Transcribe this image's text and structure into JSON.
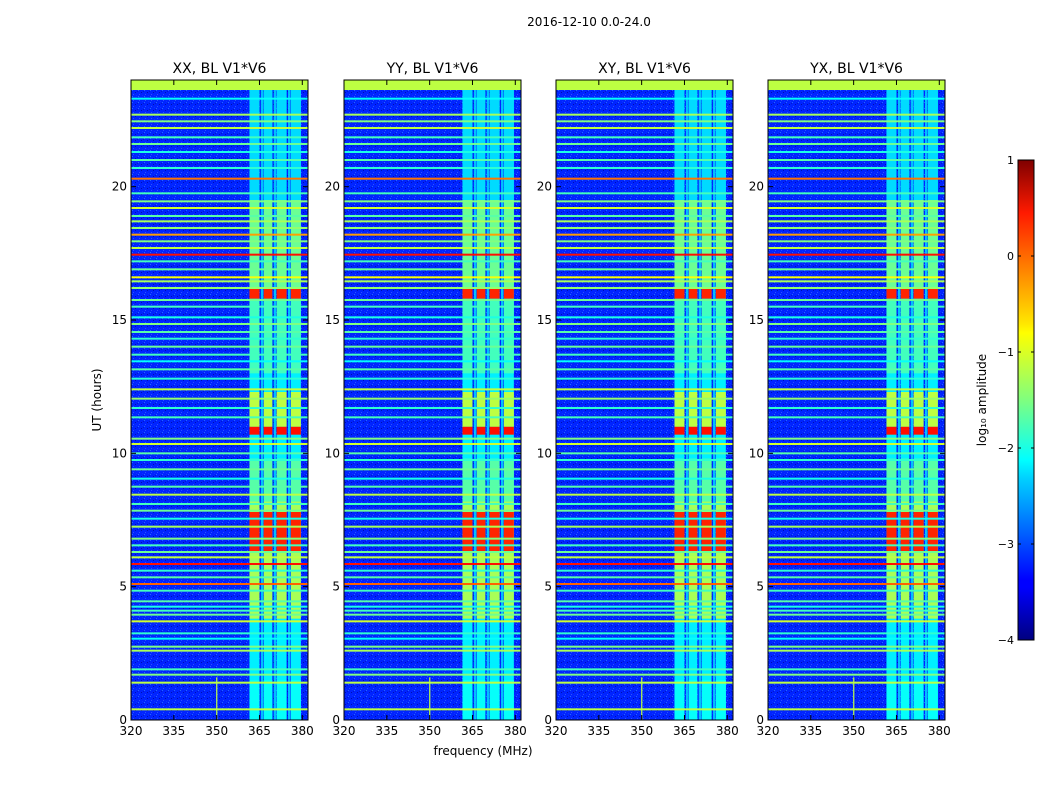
{
  "chart_data": {
    "type": "heatmap",
    "suptitle": "2016-12-10 0.0-24.0",
    "xlabel": "frequency (MHz)",
    "ylabel": "UT (hours)",
    "xlim": [
      320,
      382
    ],
    "ylim": [
      0,
      24
    ],
    "xticks": [
      320,
      335,
      350,
      365,
      380
    ],
    "yticks": [
      0,
      5,
      10,
      15,
      20
    ],
    "colorbar": {
      "label": "log₁₀ amplitude",
      "range": [
        -4,
        1
      ],
      "ticks": [
        1,
        0,
        -1,
        -2,
        -3,
        -4
      ],
      "tick_labels": [
        "1",
        "0",
        "−1",
        "−2",
        "−3",
        "−4"
      ],
      "colormap": "jet"
    },
    "background_log10_amplitude": -3.2,
    "panels": [
      {
        "title": "XX, BL V1*V6",
        "signal_band_start_hour": 0.0
      },
      {
        "title": "YY, BL V1*V6",
        "signal_band_start_hour": 0.0
      },
      {
        "title": "XY, BL V1*V6",
        "signal_band_start_hour": 0.0
      },
      {
        "title": "YX, BL V1*V6",
        "signal_band_start_hour": 0.0
      }
    ],
    "signal_channels_mhz": [
      {
        "from": 361.5,
        "to": 365.0
      },
      {
        "from": 366.5,
        "to": 369.5
      },
      {
        "from": 371.0,
        "to": 374.5
      },
      {
        "from": 376.0,
        "to": 379.5
      }
    ],
    "faint_channels_mhz": [
      {
        "from": 365.5,
        "to": 366.3
      },
      {
        "from": 370.0,
        "to": 370.8
      },
      {
        "from": 375.0,
        "to": 375.8
      }
    ],
    "vertical_rfi_lines": [
      {
        "freq_mhz": 350,
        "from_hour": 0.0,
        "to_hour": 1.6
      }
    ],
    "signal_blocks": [
      {
        "from_hour": 0.0,
        "to_hour": 1.5,
        "log10_amplitude": -2.1
      },
      {
        "from_hour": 3.8,
        "to_hour": 8.2,
        "log10_amplitude": -1.3
      },
      {
        "from_hour": 6.3,
        "to_hour": 7.8,
        "log10_amplitude": 0.2
      },
      {
        "from_hour": 8.2,
        "to_hour": 9.8,
        "log10_amplitude": -1.7
      },
      {
        "from_hour": 10.7,
        "to_hour": 11.0,
        "log10_amplitude": 0.3
      },
      {
        "from_hour": 11.0,
        "to_hour": 12.3,
        "log10_amplitude": -1.2
      },
      {
        "from_hour": 13.0,
        "to_hour": 15.8,
        "log10_amplitude": -1.8
      },
      {
        "from_hour": 15.8,
        "to_hour": 16.2,
        "log10_amplitude": 0.2
      },
      {
        "from_hour": 16.2,
        "to_hour": 19.5,
        "log10_amplitude": -1.6
      },
      {
        "from_hour": 19.5,
        "to_hour": 24.0,
        "log10_amplitude": -2.3
      }
    ],
    "time_rfi_lines": [
      {
        "hour": 0.4,
        "log10_amplitude": -1.2
      },
      {
        "hour": 1.4,
        "log10_amplitude": -1.2
      },
      {
        "hour": 1.7,
        "log10_amplitude": -1.5
      },
      {
        "hour": 1.9,
        "log10_amplitude": -1.8
      },
      {
        "hour": 2.6,
        "log10_amplitude": -1.3
      },
      {
        "hour": 2.75,
        "log10_amplitude": -1.5
      },
      {
        "hour": 3.05,
        "log10_amplitude": -2.1
      },
      {
        "hour": 3.25,
        "log10_amplitude": -1.9
      },
      {
        "hour": 3.7,
        "log10_amplitude": -1.1
      },
      {
        "hour": 3.95,
        "log10_amplitude": -1.6
      },
      {
        "hour": 4.1,
        "log10_amplitude": -1.8
      },
      {
        "hour": 4.25,
        "log10_amplitude": -2.0
      },
      {
        "hour": 4.45,
        "log10_amplitude": -1.7
      },
      {
        "hour": 4.85,
        "log10_amplitude": -1.8
      },
      {
        "hour": 5.1,
        "log10_amplitude": -0.1
      },
      {
        "hour": 5.35,
        "log10_amplitude": -1.7
      },
      {
        "hour": 5.6,
        "log10_amplitude": -1.9
      },
      {
        "hour": 5.85,
        "log10_amplitude": 0.3
      },
      {
        "hour": 6.1,
        "log10_amplitude": -1.2
      },
      {
        "hour": 6.3,
        "log10_amplitude": -1.6
      },
      {
        "hour": 6.55,
        "log10_amplitude": -1.8
      },
      {
        "hour": 6.8,
        "log10_amplitude": -1.5
      },
      {
        "hour": 7.25,
        "log10_amplitude": -1.3
      },
      {
        "hour": 7.55,
        "log10_amplitude": -2.0
      },
      {
        "hour": 7.85,
        "log10_amplitude": -1.6
      },
      {
        "hour": 8.1,
        "log10_amplitude": -1.8
      },
      {
        "hour": 8.45,
        "log10_amplitude": -1.2
      },
      {
        "hour": 8.75,
        "log10_amplitude": -1.7
      },
      {
        "hour": 9.05,
        "log10_amplitude": -2.0
      },
      {
        "hour": 9.4,
        "log10_amplitude": -1.6
      },
      {
        "hour": 9.75,
        "log10_amplitude": -1.9
      },
      {
        "hour": 10.0,
        "log10_amplitude": -1.7
      },
      {
        "hour": 10.35,
        "log10_amplitude": -1.1
      },
      {
        "hour": 10.55,
        "log10_amplitude": -1.5
      },
      {
        "hour": 11.35,
        "log10_amplitude": -1.8
      },
      {
        "hour": 11.7,
        "log10_amplitude": -1.9
      },
      {
        "hour": 12.05,
        "log10_amplitude": -1.4
      },
      {
        "hour": 12.4,
        "log10_amplitude": -1.2
      },
      {
        "hour": 12.8,
        "log10_amplitude": -1.9
      },
      {
        "hour": 13.15,
        "log10_amplitude": -1.7
      },
      {
        "hour": 13.45,
        "log10_amplitude": -2.1
      },
      {
        "hour": 13.7,
        "log10_amplitude": -1.8
      },
      {
        "hour": 14.0,
        "log10_amplitude": -1.6
      },
      {
        "hour": 14.3,
        "log10_amplitude": -1.9
      },
      {
        "hour": 14.55,
        "log10_amplitude": -1.7
      },
      {
        "hour": 14.85,
        "log10_amplitude": -1.5
      },
      {
        "hour": 15.1,
        "log10_amplitude": -2.0
      },
      {
        "hour": 15.5,
        "log10_amplitude": -1.8
      },
      {
        "hour": 15.75,
        "log10_amplitude": -1.6
      },
      {
        "hour": 16.2,
        "log10_amplitude": -1.4
      },
      {
        "hour": 16.45,
        "log10_amplitude": -1.3
      },
      {
        "hour": 16.6,
        "log10_amplitude": -0.9
      },
      {
        "hour": 16.9,
        "log10_amplitude": -1.6
      },
      {
        "hour": 17.2,
        "log10_amplitude": -1.8
      },
      {
        "hour": 17.45,
        "log10_amplitude": 0.3
      },
      {
        "hour": 17.7,
        "log10_amplitude": -1.2
      },
      {
        "hour": 17.95,
        "log10_amplitude": -1.5
      },
      {
        "hour": 18.2,
        "log10_amplitude": -0.4
      },
      {
        "hour": 18.45,
        "log10_amplitude": -1.4
      },
      {
        "hour": 18.7,
        "log10_amplitude": -1.3
      },
      {
        "hour": 18.9,
        "log10_amplitude": -1.7
      },
      {
        "hour": 19.2,
        "log10_amplitude": -1.1
      },
      {
        "hour": 19.45,
        "log10_amplitude": -1.5
      },
      {
        "hour": 19.75,
        "log10_amplitude": -1.8
      },
      {
        "hour": 20.3,
        "log10_amplitude": -0.2
      },
      {
        "hour": 20.7,
        "log10_amplitude": -1.9
      },
      {
        "hour": 21.0,
        "log10_amplitude": -1.7
      },
      {
        "hour": 21.3,
        "log10_amplitude": -2.0
      },
      {
        "hour": 21.6,
        "log10_amplitude": -1.6
      },
      {
        "hour": 21.85,
        "log10_amplitude": -1.8
      },
      {
        "hour": 22.2,
        "log10_amplitude": -1.2
      },
      {
        "hour": 22.45,
        "log10_amplitude": -1.5
      },
      {
        "hour": 22.7,
        "log10_amplitude": -1.3
      },
      {
        "hour": 23.3,
        "log10_amplitude": -2.1
      },
      {
        "hour": 23.75,
        "log10_amplitude": -1.1
      }
    ]
  }
}
